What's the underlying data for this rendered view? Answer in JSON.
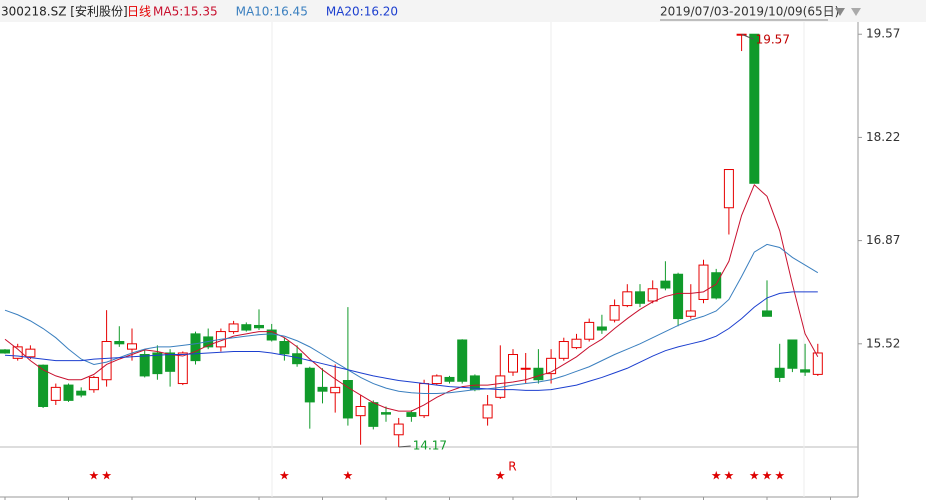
{
  "chart_data": {
    "type": "candlestick",
    "title": "300218.SZ [安利股份]",
    "period": "日线",
    "date_range": "2019/07/03-2019/10/09(65日)",
    "open": [
      15.44,
      15.33,
      15.35,
      15.24,
      14.78,
      14.98,
      14.9,
      14.92,
      15.05,
      15.55,
      15.45,
      15.38,
      15.4,
      15.4,
      15.0,
      15.65,
      15.61,
      15.48,
      15.68,
      15.77,
      15.76,
      15.7,
      15.55,
      15.39,
      15.2,
      14.95,
      14.88,
      15.04,
      14.58,
      14.75,
      14.62,
      14.33,
      14.62,
      14.58,
      15.0,
      15.08,
      15.57,
      15.1,
      14.55,
      14.82,
      15.15,
      15.2,
      15.2,
      15.13,
      15.33,
      15.47,
      15.58,
      15.74,
      15.83,
      16.02,
      16.2,
      16.08,
      16.34,
      16.43,
      15.88,
      16.1,
      16.45,
      17.3,
      19.57,
      19.57,
      15.95,
      15.2,
      15.57,
      15.18,
      15.12
    ],
    "high": [
      15.45,
      15.52,
      15.5,
      15.25,
      15.0,
      15.0,
      14.95,
      15.1,
      15.96,
      15.75,
      15.72,
      15.45,
      15.5,
      15.45,
      15.42,
      15.68,
      15.72,
      15.72,
      15.82,
      15.8,
      15.97,
      15.78,
      15.6,
      15.5,
      15.22,
      15.2,
      15.25,
      16.0,
      14.85,
      14.78,
      14.7,
      14.55,
      14.65,
      15.05,
      15.12,
      15.1,
      15.58,
      15.12,
      14.85,
      15.5,
      15.45,
      15.4,
      15.45,
      15.45,
      15.6,
      15.65,
      15.85,
      15.9,
      16.1,
      16.3,
      16.3,
      16.35,
      16.6,
      16.45,
      16.3,
      16.62,
      16.5,
      17.8,
      19.57,
      19.57,
      16.35,
      15.52,
      15.57,
      15.52,
      15.52
    ],
    "low": [
      15.39,
      15.3,
      15.32,
      14.68,
      14.72,
      14.76,
      14.82,
      14.88,
      14.96,
      15.48,
      15.3,
      15.08,
      15.05,
      14.96,
      14.98,
      15.25,
      15.45,
      15.42,
      15.65,
      15.68,
      15.7,
      15.55,
      15.3,
      15.22,
      14.41,
      14.74,
      14.62,
      14.45,
      14.2,
      14.4,
      14.5,
      14.17,
      14.5,
      14.55,
      14.98,
      15.0,
      15.0,
      14.9,
      14.45,
      14.8,
      15.1,
      15.0,
      15.0,
      15.0,
      15.3,
      15.45,
      15.55,
      15.65,
      15.8,
      16.0,
      16.0,
      16.05,
      16.22,
      15.75,
      15.85,
      16.05,
      16.1,
      16.95,
      19.35,
      17.62,
      15.88,
      15.02,
      15.15,
      15.1,
      15.1
    ],
    "close": [
      15.4,
      15.48,
      15.45,
      14.7,
      14.95,
      14.78,
      14.85,
      15.08,
      15.55,
      15.52,
      15.52,
      15.1,
      15.13,
      15.16,
      15.4,
      15.3,
      15.48,
      15.68,
      15.78,
      15.7,
      15.73,
      15.57,
      15.39,
      15.26,
      14.76,
      14.9,
      14.95,
      14.55,
      14.7,
      14.44,
      14.6,
      14.47,
      14.57,
      15.0,
      15.1,
      15.03,
      15.03,
      14.92,
      14.72,
      15.1,
      15.38,
      15.2,
      15.05,
      15.33,
      15.55,
      15.58,
      15.8,
      15.7,
      16.02,
      16.2,
      16.05,
      16.24,
      16.25,
      15.85,
      15.95,
      16.55,
      16.12,
      17.8,
      19.57,
      17.62,
      15.88,
      15.08,
      15.2,
      15.15,
      15.4
    ],
    "up_color": "#e60000",
    "down_color": "#109a2a",
    "series": [
      {
        "name": "MA5:15.35",
        "color": "#c8102e",
        "values": [
          15.58,
          15.45,
          15.3,
          15.18,
          15.1,
          15.05,
          15.05,
          15.12,
          15.25,
          15.32,
          15.38,
          15.44,
          15.42,
          15.38,
          15.36,
          15.42,
          15.5,
          15.56,
          15.62,
          15.65,
          15.68,
          15.68,
          15.6,
          15.48,
          15.32,
          15.18,
          15.06,
          14.95,
          14.85,
          14.75,
          14.68,
          14.64,
          14.64,
          14.72,
          14.82,
          14.9,
          14.96,
          14.98,
          14.98,
          15.0,
          15.02,
          15.05,
          15.1,
          15.15,
          15.25,
          15.35,
          15.48,
          15.58,
          15.72,
          15.85,
          15.97,
          16.07,
          16.14,
          16.18,
          16.18,
          16.2,
          16.3,
          16.6,
          17.2,
          17.6,
          17.45,
          17.0,
          16.3,
          15.65,
          15.35
        ]
      },
      {
        "name": "MA10:16.45",
        "color": "#3a7fbf",
        "values": [
          15.96,
          15.9,
          15.82,
          15.72,
          15.6,
          15.45,
          15.32,
          15.25,
          15.28,
          15.34,
          15.4,
          15.45,
          15.48,
          15.48,
          15.5,
          15.52,
          15.55,
          15.58,
          15.6,
          15.62,
          15.64,
          15.65,
          15.62,
          15.56,
          15.48,
          15.38,
          15.28,
          15.18,
          15.08,
          15.0,
          14.94,
          14.9,
          14.88,
          14.87,
          14.87,
          14.88,
          14.9,
          14.92,
          14.93,
          14.95,
          14.98,
          15.0,
          15.02,
          15.05,
          15.1,
          15.16,
          15.22,
          15.3,
          15.38,
          15.45,
          15.52,
          15.6,
          15.68,
          15.76,
          15.83,
          15.88,
          15.95,
          16.1,
          16.4,
          16.72,
          16.82,
          16.78,
          16.65,
          16.55,
          16.45
        ]
      },
      {
        "name": "MA20:16.20",
        "color": "#1c3fcf",
        "values": [
          15.37,
          15.36,
          15.34,
          15.32,
          15.3,
          15.3,
          15.3,
          15.32,
          15.33,
          15.34,
          15.35,
          15.36,
          15.37,
          15.38,
          15.38,
          15.39,
          15.4,
          15.41,
          15.42,
          15.42,
          15.42,
          15.4,
          15.37,
          15.34,
          15.3,
          15.26,
          15.22,
          15.18,
          15.14,
          15.1,
          15.07,
          15.04,
          15.02,
          15.0,
          14.98,
          14.96,
          14.95,
          14.94,
          14.93,
          14.92,
          14.92,
          14.91,
          14.91,
          14.92,
          14.95,
          14.98,
          15.03,
          15.08,
          15.14,
          15.2,
          15.28,
          15.36,
          15.43,
          15.48,
          15.52,
          15.56,
          15.62,
          15.72,
          15.85,
          16.0,
          16.12,
          16.18,
          16.2,
          16.2,
          16.2
        ]
      }
    ],
    "ylim": [
      14.17,
      19.73
    ],
    "yticks": [
      15.52,
      16.87,
      18.22,
      19.57
    ],
    "max_label": "19.57",
    "min_label": "14.17",
    "markers": [
      {
        "candle": 7,
        "label": "★"
      },
      {
        "candle": 8,
        "label": "★"
      },
      {
        "candle": 22,
        "label": "★"
      },
      {
        "candle": 27,
        "label": "★"
      },
      {
        "candle": 39,
        "label": "★",
        "note": "R"
      },
      {
        "candle": 56,
        "label": "★"
      },
      {
        "candle": 57,
        "label": "★"
      },
      {
        "candle": 59,
        "label": "★"
      },
      {
        "candle": 60,
        "label": "★"
      },
      {
        "candle": 61,
        "label": "★"
      }
    ]
  }
}
